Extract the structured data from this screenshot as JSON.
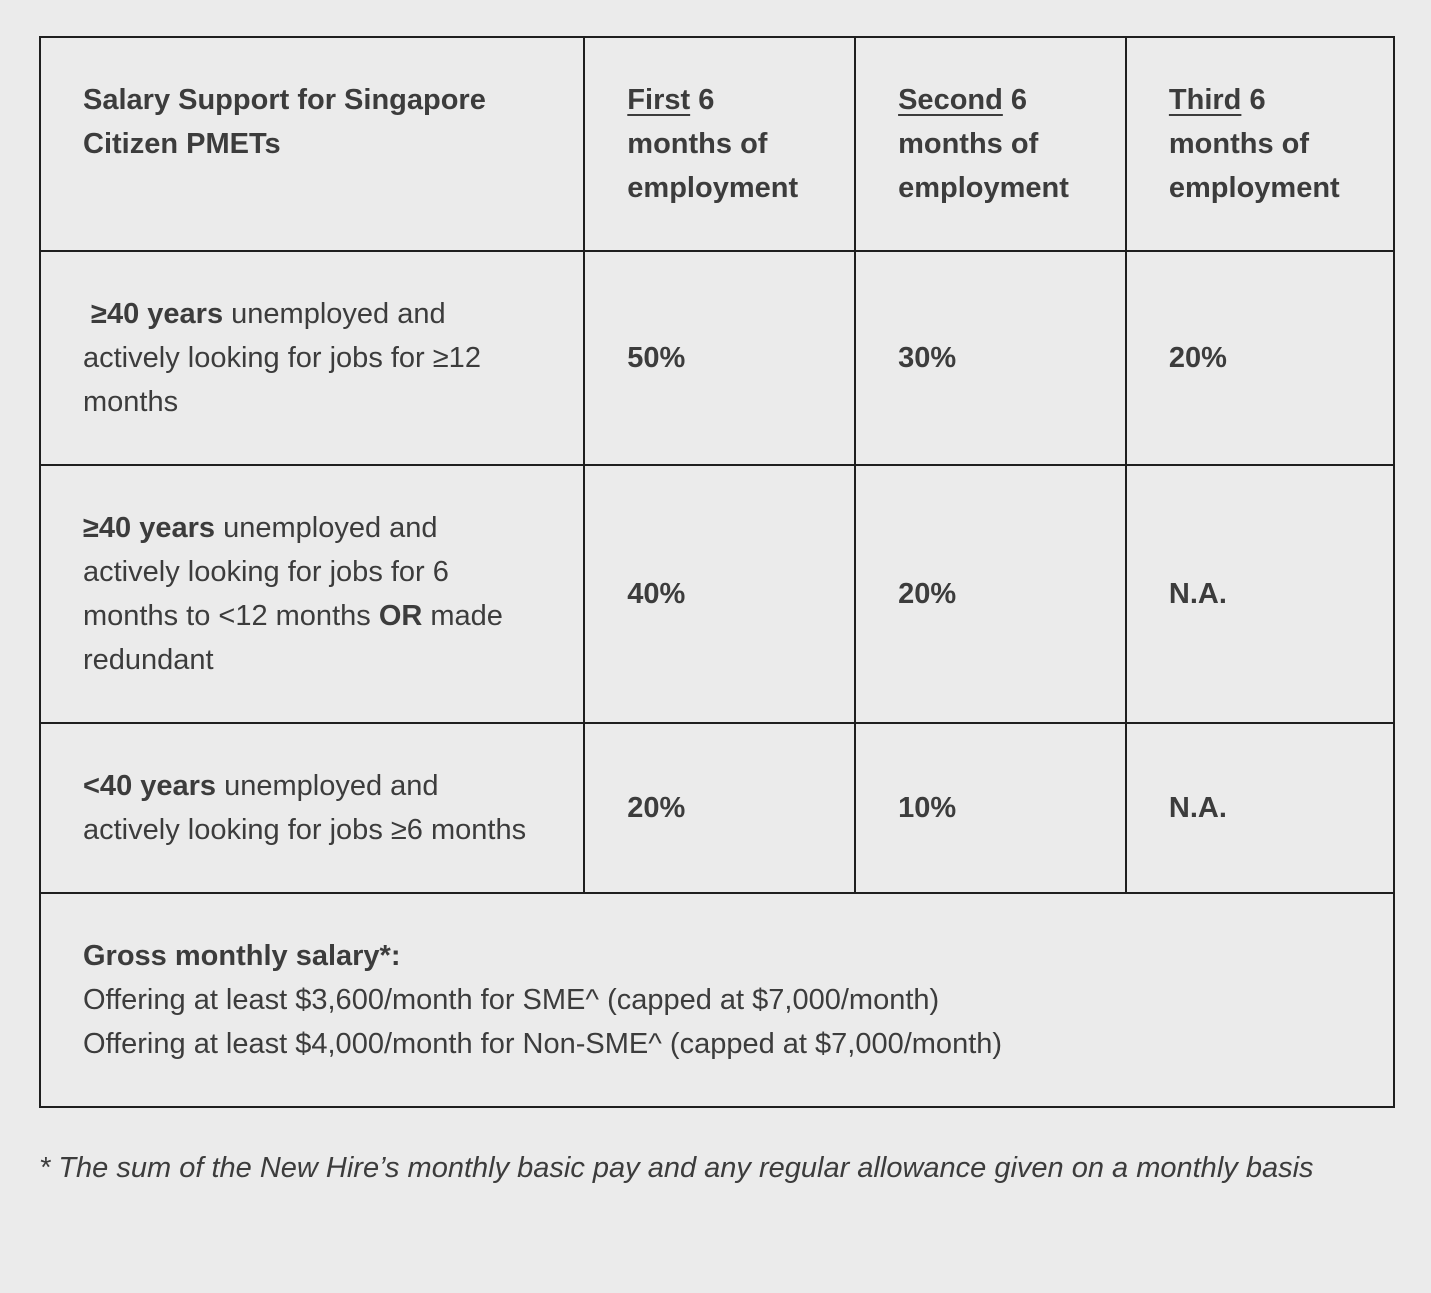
{
  "colors": {
    "background": "#ebebeb",
    "text": "#3c3c3c",
    "border": "#1f1f1f"
  },
  "table": {
    "title": "Salary Support for Singapore Citizen PMETs",
    "columns": [
      {
        "emphasis": "First",
        "rest": "6 months of employment"
      },
      {
        "emphasis": "Second",
        "rest": "6 months of employment"
      },
      {
        "emphasis": "Third",
        "rest": "6 months of employment"
      }
    ],
    "rows": [
      {
        "bold_lead": " ≥40 years",
        "text_a": " unemployed and actively looking for jobs for ≥12 months",
        "bold_mid": "",
        "text_b": "",
        "values": [
          "50%",
          "30%",
          "20%"
        ]
      },
      {
        "bold_lead": "≥40 years",
        "text_a": " unemployed and actively looking for jobs for 6 months to <12 months ",
        "bold_mid": "OR",
        "text_b": " made redundant",
        "values": [
          "40%",
          "20%",
          "N.A."
        ]
      },
      {
        "bold_lead": "<40 years",
        "text_a": " unemployed and actively looking for jobs ≥6 months",
        "bold_mid": "",
        "text_b": "",
        "values": [
          "20%",
          "10%",
          "N.A."
        ]
      }
    ],
    "salary_note": {
      "title": "Gross monthly salary*:",
      "line1": "Offering at least $3,600/month for SME^ (capped at $7,000/month)",
      "line2": "Offering at least $4,000/month for Non-SME^ (capped at $7,000/month)"
    }
  },
  "footnote": "* The sum of the New Hire’s monthly basic pay and any regular allowance given on a monthly basis"
}
